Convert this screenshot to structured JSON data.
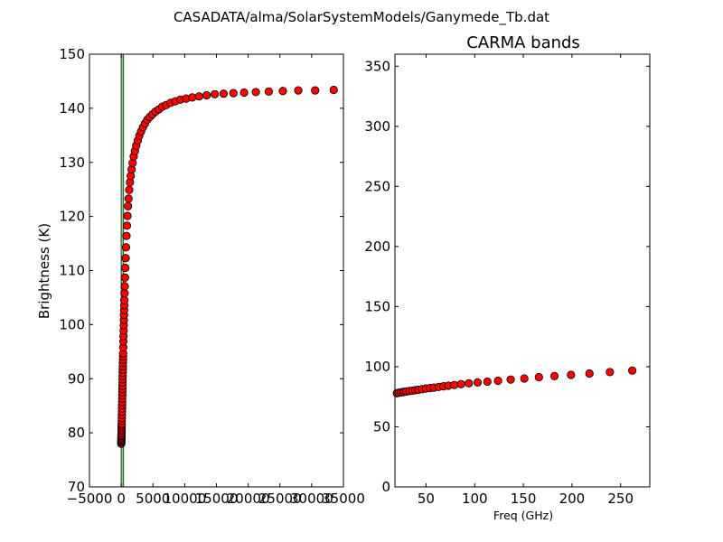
{
  "figure": {
    "suptitle": "CASADATA/alma/SolarSystemModels/Ganymede_Tb.dat"
  },
  "colors": {
    "marker_fill": "#ff0000",
    "marker_edge": "#000000",
    "band_line": "#2e6b2e",
    "band_fill": "#9cbf9c"
  },
  "chart_data": [
    {
      "type": "scatter",
      "title": "",
      "xlabel": "",
      "ylabel": "Brightness (K)",
      "xlim": [
        -5000,
        35000
      ],
      "ylim": [
        70,
        150
      ],
      "xticks": [
        -5000,
        0,
        5000,
        10000,
        15000,
        20000,
        25000,
        30000,
        35000
      ],
      "xtick_labels": [
        "−5000",
        "0",
        "5000",
        "10000",
        "15000",
        "20000",
        "25000",
        "30000",
        "35000"
      ],
      "yticks": [
        70,
        80,
        90,
        100,
        110,
        120,
        130,
        140,
        150
      ],
      "ytick_labels": [
        "70",
        "80",
        "90",
        "100",
        "110",
        "120",
        "130",
        "140",
        "150"
      ],
      "shaded_band": {
        "x_start": 0,
        "x_end": 350
      },
      "grid": false,
      "series": [
        {
          "x": [
            5,
            10,
            15,
            20,
            25,
            30,
            35,
            40,
            45,
            50,
            55,
            60,
            65,
            70,
            75,
            80,
            90,
            100,
            110,
            120,
            130,
            140,
            150,
            160,
            170,
            180,
            190,
            200,
            210,
            220,
            230,
            240,
            250,
            260,
            270,
            280,
            290,
            300,
            320,
            340,
            360,
            380,
            400,
            420,
            440,
            460,
            480,
            500,
            530,
            560,
            600,
            650,
            700,
            760,
            830,
            900,
            980,
            1070,
            1160,
            1260,
            1380,
            1500,
            1640,
            1800,
            1970,
            2160,
            2370,
            2600,
            2850,
            3120,
            3420,
            3750,
            4110,
            4500,
            4930,
            5400,
            5920,
            6480,
            7100,
            7780,
            8520,
            9330,
            10230,
            11200,
            12270,
            13450,
            14730,
            16130,
            17670,
            19360,
            21210,
            23240,
            25460,
            27890,
            30550,
            33470
          ],
          "y": [
            78.0,
            78.2,
            78.4,
            78.6,
            78.8,
            79.0,
            79.2,
            79.4,
            79.6,
            79.9,
            80.2,
            80.5,
            80.8,
            81.1,
            81.4,
            81.7,
            82.2,
            82.7,
            83.3,
            83.9,
            84.5,
            85.1,
            85.7,
            86.3,
            86.9,
            87.5,
            88.1,
            88.7,
            89.3,
            89.9,
            90.5,
            91.1,
            91.7,
            92.3,
            92.9,
            93.5,
            94.1,
            94.7,
            95.8,
            96.9,
            97.9,
            98.9,
            99.9,
            100.9,
            101.8,
            102.7,
            103.6,
            104.5,
            105.8,
            107.1,
            108.7,
            110.5,
            112.3,
            114.3,
            116.4,
            118.3,
            120.1,
            121.9,
            123.3,
            124.9,
            126.3,
            127.5,
            128.7,
            129.9,
            131.1,
            132.1,
            133.1,
            134.0,
            134.9,
            135.7,
            136.5,
            137.2,
            137.9,
            138.4,
            138.9,
            139.4,
            139.8,
            140.3,
            140.6,
            141.0,
            141.3,
            141.6,
            141.8,
            142.0,
            142.2,
            142.4,
            142.6,
            142.7,
            142.8,
            142.9,
            143.0,
            143.1,
            143.2,
            143.3,
            143.3,
            143.4
          ]
        }
      ]
    },
    {
      "type": "scatter",
      "title": "CARMA bands",
      "xlabel": "Freq (GHz)",
      "ylabel": "",
      "xlim": [
        18,
        280
      ],
      "ylim": [
        0,
        360
      ],
      "xticks": [
        50,
        100,
        150,
        200,
        250
      ],
      "xtick_labels": [
        "50",
        "100",
        "150",
        "200",
        "250"
      ],
      "yticks": [
        0,
        50,
        100,
        150,
        200,
        250,
        300,
        350
      ],
      "ytick_labels": [
        "0",
        "50",
        "100",
        "150",
        "200",
        "250",
        "300",
        "350"
      ],
      "grid": false,
      "series": [
        {
          "x": [
            20,
            22,
            24,
            26,
            28,
            30,
            33,
            36,
            39,
            42,
            46,
            50,
            54,
            58,
            63,
            68,
            73,
            79,
            86,
            94,
            103,
            113,
            124,
            137,
            151,
            166,
            182,
            199,
            218,
            239,
            262
          ],
          "y": [
            78.0,
            78.3,
            78.6,
            78.9,
            79.1,
            79.4,
            79.8,
            80.1,
            80.5,
            80.8,
            81.3,
            81.8,
            82.2,
            82.6,
            83.2,
            83.7,
            84.2,
            84.8,
            85.5,
            86.2,
            86.9,
            87.6,
            88.3,
            89.3,
            90.2,
            91.3,
            92.2,
            93.2,
            94.3,
            95.5,
            96.8
          ]
        }
      ]
    }
  ]
}
